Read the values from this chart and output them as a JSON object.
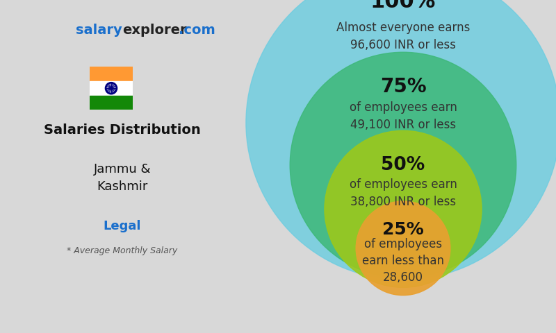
{
  "website_salary": "salary",
  "website_explorer": "explorer",
  "website_com": ".com",
  "main_title": "Salaries Distribution",
  "location": "Jammu &\nKashmir",
  "field": "Legal",
  "subtitle": "* Average Monthly Salary",
  "flag_orange": "#FF9933",
  "flag_green": "#138808",
  "flag_white": "#FFFFFF",
  "flag_chakra": "#000080",
  "bg_color": "#d8d8d8",
  "website_blue": "#1a6fcc",
  "website_dark": "#222222",
  "main_title_color": "#111111",
  "location_color": "#111111",
  "field_color": "#1a6fcc",
  "subtitle_color": "#555555",
  "circle_100_color": "#6dcde0",
  "circle_75_color": "#3db878",
  "circle_50_color": "#9dc819",
  "circle_25_color": "#e8a030",
  "circle_100_alpha": 0.82,
  "circle_75_alpha": 0.85,
  "circle_50_alpha": 0.88,
  "circle_25_alpha": 0.92,
  "text_dark": "#111111",
  "text_mid": "#333333",
  "pct_100_fs": 22,
  "pct_75_fs": 20,
  "pct_50_fs": 19,
  "pct_25_fs": 18,
  "lbl_fs": 12
}
